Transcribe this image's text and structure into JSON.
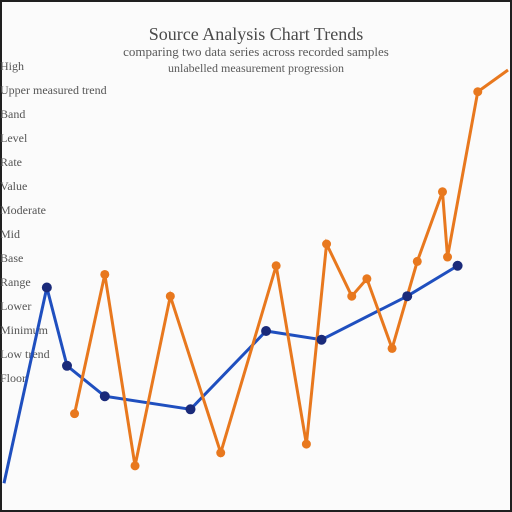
{
  "chart_data": {
    "type": "line",
    "title": "Source Analysis Chart Trends",
    "subtitle": "comparing two data series across recorded samples",
    "subtitle2": "unlabelled measurement progression",
    "ylabel_lines": [
      "High",
      "Upper measured trend",
      "Band",
      "Level",
      "Rate",
      "Value",
      "Moderate",
      "Mid",
      "Base",
      "Range",
      "Lower",
      "Minimum",
      "Low trend",
      "Floor"
    ],
    "ylim": [
      0,
      100
    ],
    "grid": false,
    "series": [
      {
        "color": "#1f4fbf",
        "x": [
          0,
          8.5,
          12.5,
          20,
          37,
          52,
          63,
          80,
          90
        ],
        "y": [
          5,
          50,
          32,
          25,
          22,
          40,
          38,
          48,
          55
        ]
      },
      {
        "color": "#e8781e",
        "x": [
          14,
          20,
          26,
          33,
          43,
          54,
          60,
          64,
          69,
          72,
          77,
          82,
          87,
          88,
          94,
          100
        ],
        "y": [
          21,
          53,
          9,
          48,
          12,
          55,
          14,
          60,
          48,
          52,
          36,
          56,
          72,
          57,
          95,
          100
        ]
      }
    ]
  }
}
